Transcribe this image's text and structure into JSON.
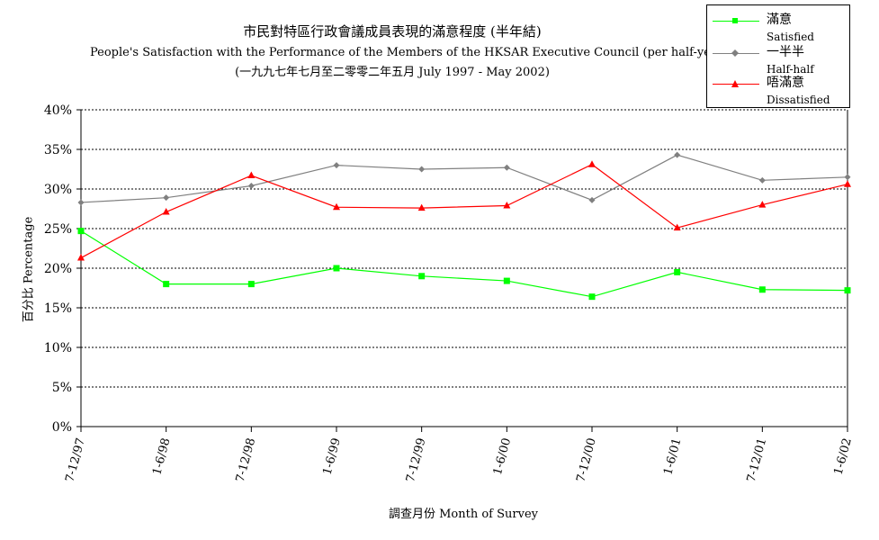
{
  "chart_data": {
    "type": "line",
    "title": "市民對特區行政會議成員表現的滿意程度 (半年結)",
    "subtitle": "People's Satisfaction with the Performance of the Members of the HKSAR Executive Council (per half-year)",
    "subtitle2": "(一九九七年七月至二零零二年五月 July 1997 -  May 2002)",
    "xlabel": "調查月份 Month of Survey",
    "ylabel": "百分比 Percentage",
    "categories": [
      "7-12/97",
      "1-6/98",
      "7-12/98",
      "1-6/99",
      "7-12/99",
      "1-6/00",
      "7-12/00",
      "1-6/01",
      "7-12/01",
      "1-6/02"
    ],
    "y_ticks": [
      "0%",
      "5%",
      "10%",
      "15%",
      "20%",
      "25%",
      "30%",
      "35%",
      "40%"
    ],
    "ylim": [
      0,
      40
    ],
    "grid": "horizontal dashed",
    "legend_position": "top-right",
    "series": [
      {
        "name_zh": "滿意",
        "name_en": "Satisfied",
        "color": "#00ff00",
        "marker": "square",
        "values": [
          24.7,
          18.0,
          18.0,
          20.0,
          19.0,
          18.4,
          16.4,
          19.5,
          17.3,
          17.2
        ]
      },
      {
        "name_zh": "一半半",
        "name_en": "Half-half",
        "color": "#808080",
        "marker": "diamond",
        "values": [
          28.3,
          28.9,
          30.4,
          33.0,
          32.5,
          32.7,
          28.6,
          34.3,
          31.1,
          31.5
        ]
      },
      {
        "name_zh": "唔滿意",
        "name_en": "Dissatisfied",
        "color": "#ff0000",
        "marker": "triangle",
        "values": [
          21.3,
          27.1,
          31.7,
          27.7,
          27.6,
          27.9,
          33.1,
          25.1,
          28.0,
          30.6
        ]
      }
    ]
  }
}
